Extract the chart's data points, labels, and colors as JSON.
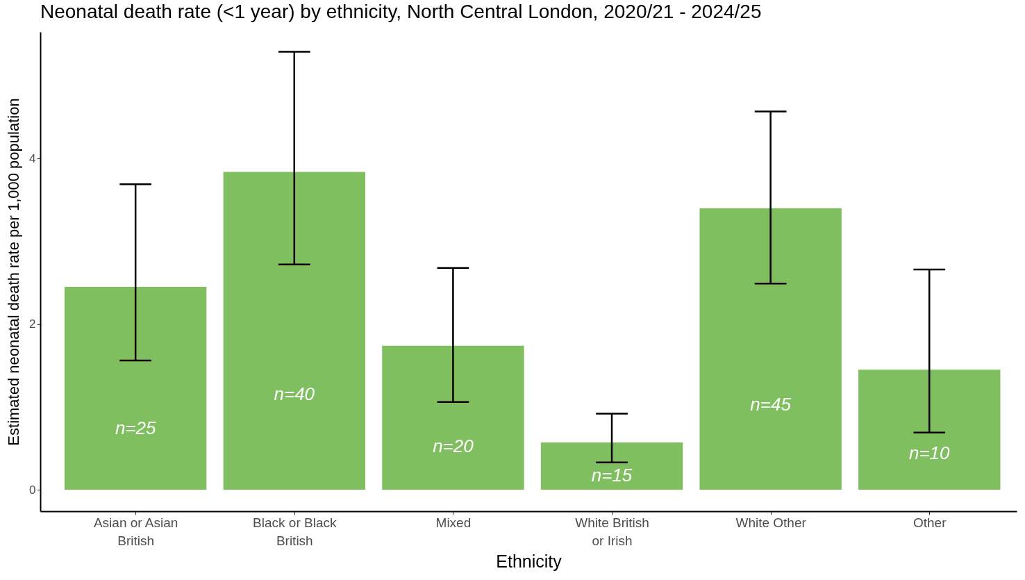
{
  "chart_data": {
    "type": "bar",
    "title": "Neonatal death rate (<1 year) by ethnicity, North Central London, 2020/21 - 2024/25",
    "xlabel": "Ethnicity",
    "ylabel": "Estimated neonatal death rate per 1,000 population",
    "categories": [
      "Asian or Asian British",
      "Black or Black British",
      "Mixed",
      "White British or Irish",
      "White Other",
      "Other"
    ],
    "values": [
      2.45,
      3.84,
      1.74,
      0.57,
      3.4,
      1.45
    ],
    "errors": [
      [
        1.56,
        3.69
      ],
      [
        2.72,
        5.29
      ],
      [
        1.06,
        2.68
      ],
      [
        0.33,
        0.92
      ],
      [
        2.49,
        4.57
      ],
      [
        0.69,
        2.66
      ]
    ],
    "color": "#7fbf5f",
    "ylim": [
      -0.26,
      5.53
    ],
    "yticks": [
      0,
      2,
      4
    ],
    "grid": false,
    "annotations": [
      "n=25",
      "n=40",
      "n=20",
      "n=15",
      "n=45",
      "n=10"
    ]
  }
}
